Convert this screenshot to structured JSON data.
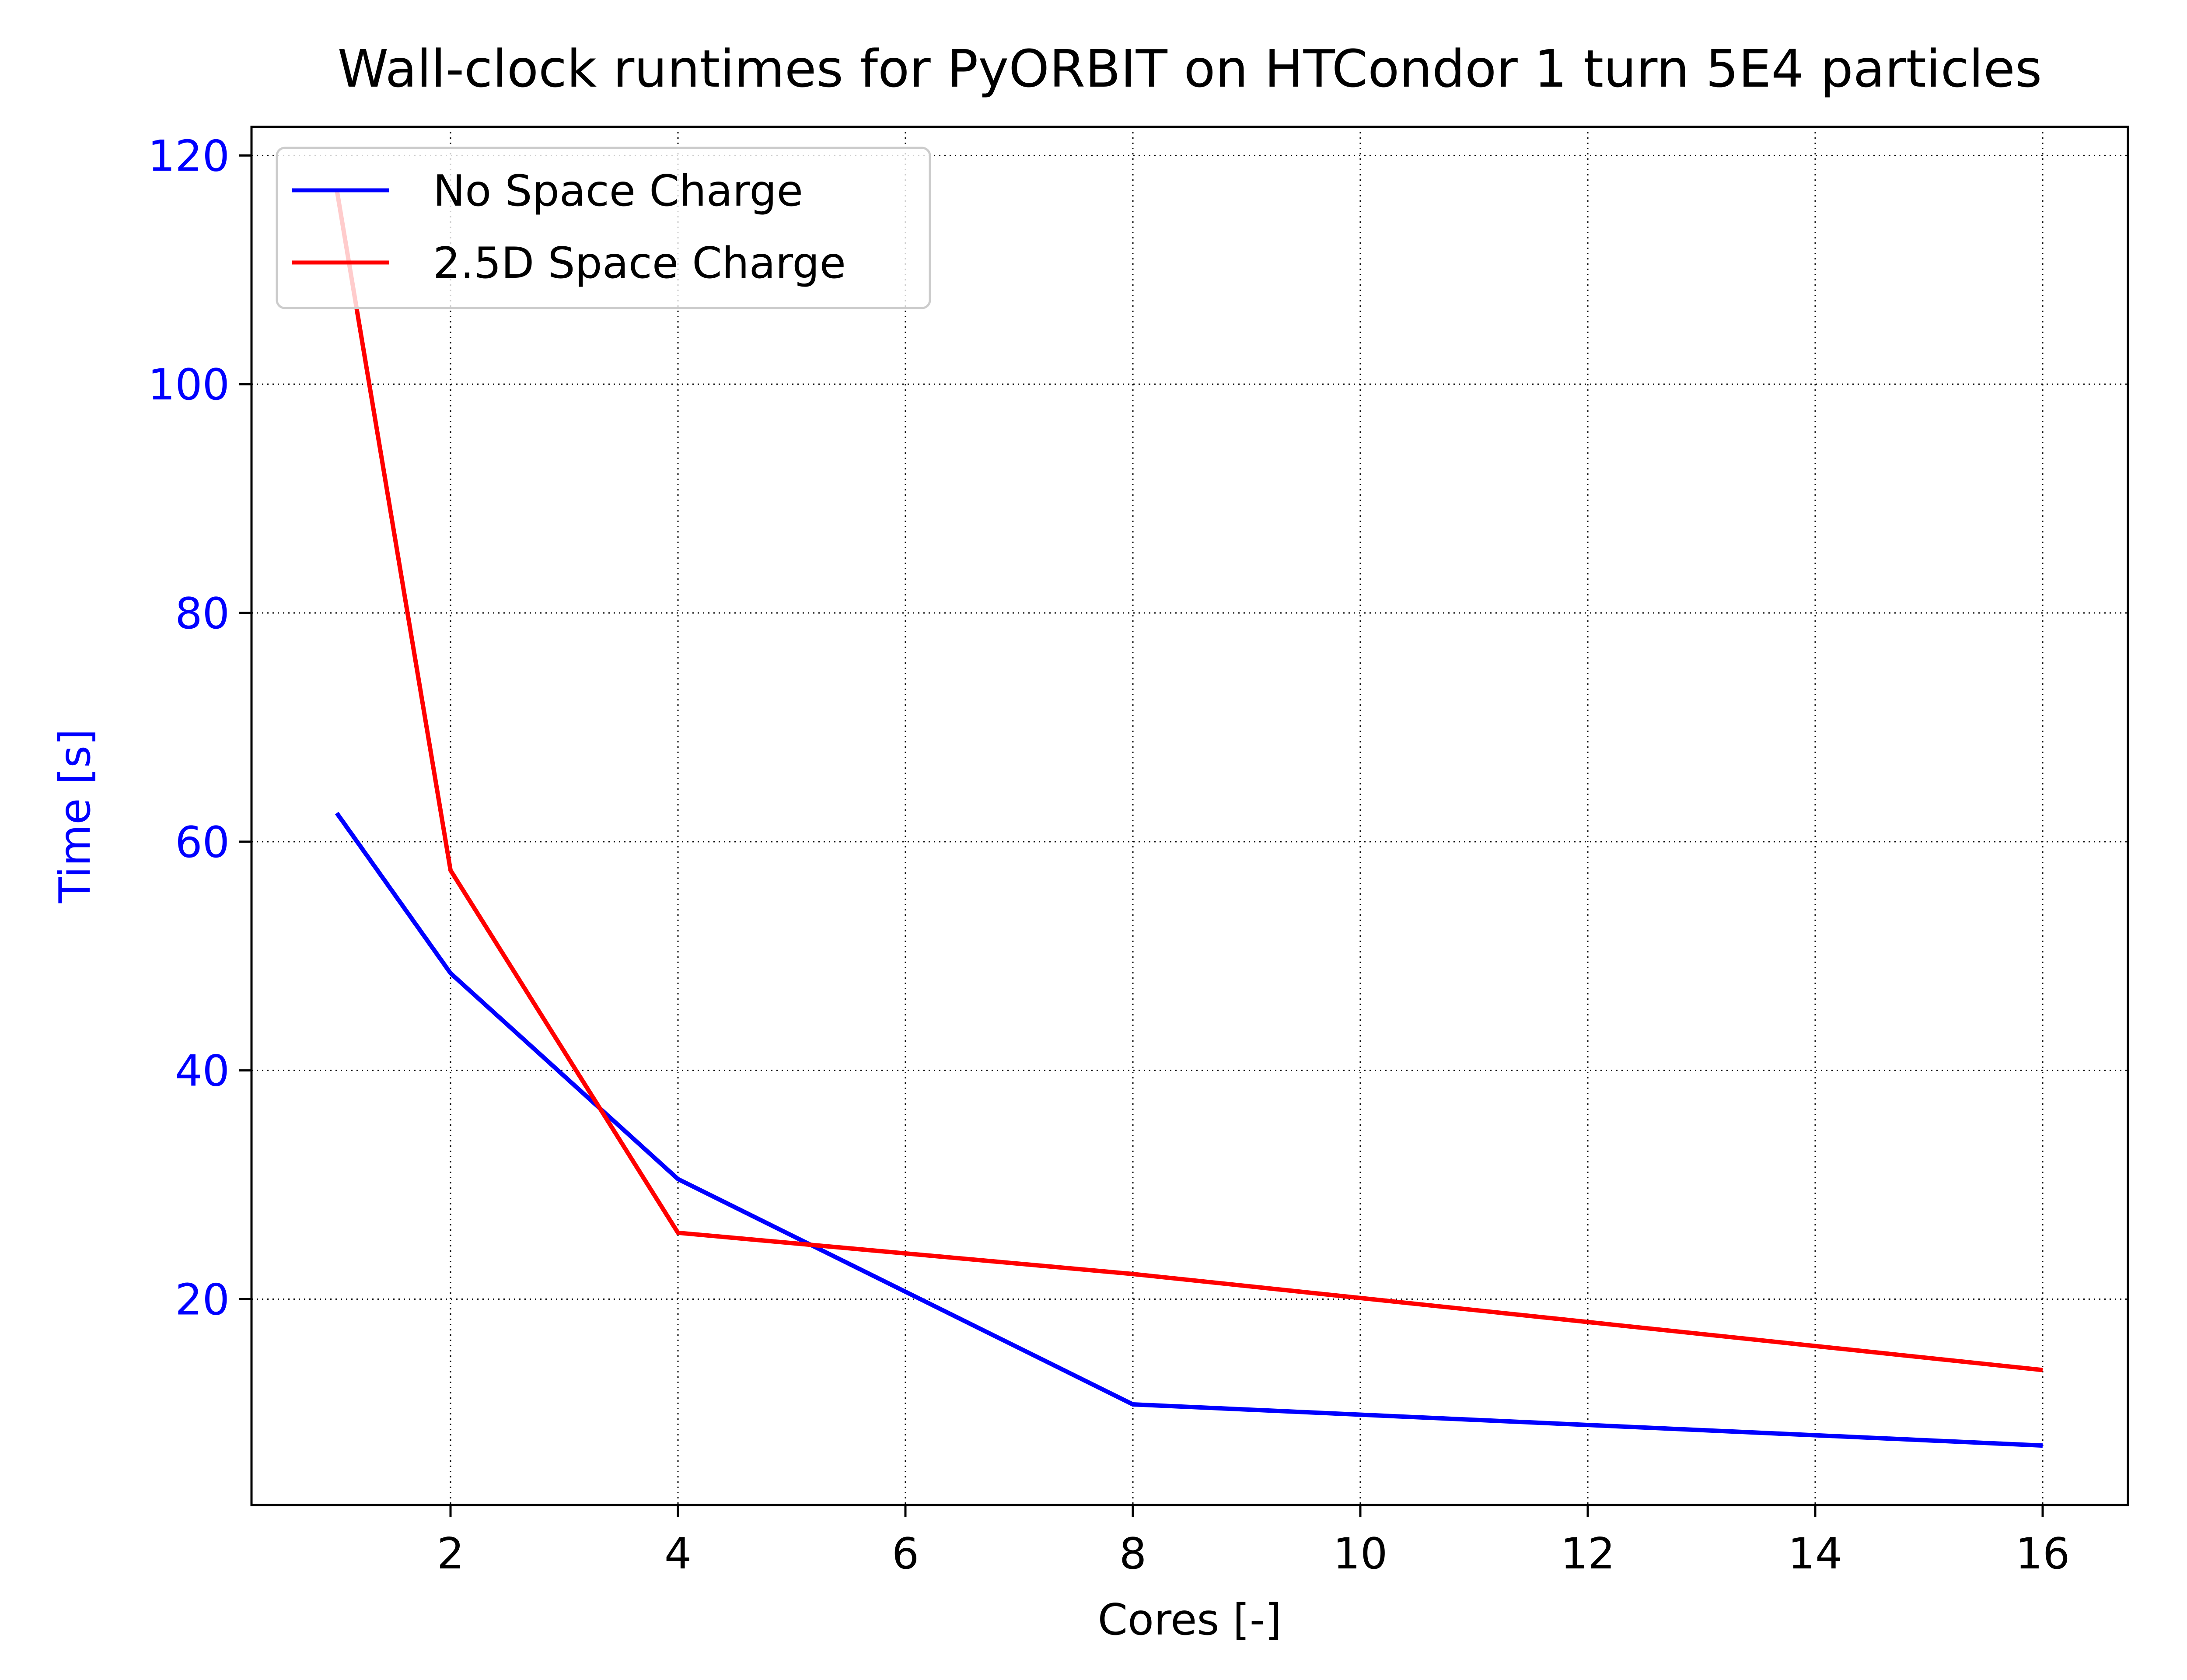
{
  "chart_data": {
    "type": "line",
    "title": "Wall-clock runtimes for PyORBIT on HTCondor 1 turn 5E4 particles",
    "xlabel": "Cores [-]",
    "ylabel": "Time [s]",
    "xlim": [
      0.25,
      16.75
    ],
    "ylim": [
      2.0,
      122.5
    ],
    "xticks": [
      2,
      4,
      6,
      8,
      10,
      12,
      14,
      16
    ],
    "yticks": [
      20,
      40,
      60,
      80,
      100,
      120
    ],
    "grid": true,
    "legend_position": "top-left",
    "ylabel_color": "#0000ff",
    "ytick_color": "#0000ff",
    "series": [
      {
        "name": "No Space Charge",
        "color": "#0000ff",
        "x": [
          1,
          2,
          4,
          8,
          16
        ],
        "y": [
          62.5,
          48.5,
          30.5,
          10.8,
          7.2
        ]
      },
      {
        "name": "2.5D Space Charge",
        "color": "#ff0000",
        "x": [
          1,
          2,
          4,
          8,
          16
        ],
        "y": [
          117.0,
          57.5,
          25.8,
          22.2,
          13.8
        ]
      }
    ]
  }
}
